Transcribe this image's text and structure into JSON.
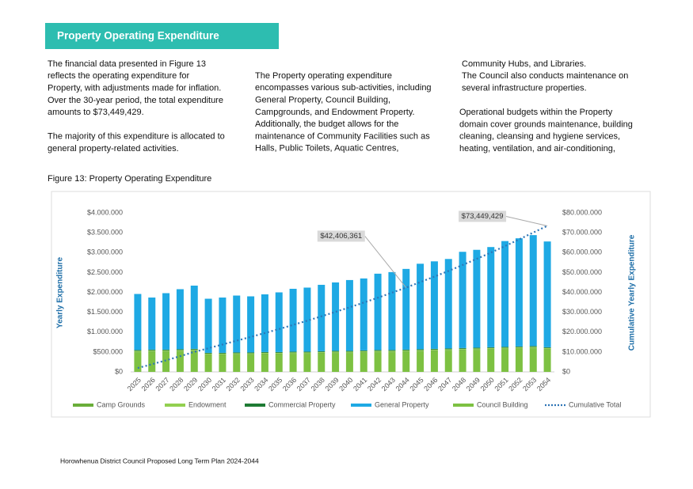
{
  "header": {
    "title": "Property Operating Expenditure"
  },
  "body": {
    "columns": [
      {
        "paragraphs": [
          {
            "lines": [
              "The financial data presented in Figure 13",
              "reflects the operating expenditure for",
              "Property, with adjustments made for inflation.",
              "Over the 30-year period, the total expenditure",
              "amounts to $73,449,429."
            ]
          },
          {
            "lines": [
              "The majority of this expenditure is allocated to",
              "general property-related activities."
            ]
          }
        ]
      },
      {
        "paragraphs": [
          {
            "lines": [
              "The Property operating expenditure",
              "encompasses various sub-activities, including",
              "General Property, Council Building,",
              "Campgrounds, and Endowment Property.",
              "Additionally, the budget allows for the",
              "maintenance of Community Facilities such as",
              "Halls, Public Toilets, Aquatic Centres,"
            ]
          }
        ]
      },
      {
        "paragraphs": [
          {
            "lines": [
              "Community Hubs, and Libraries.",
              "The Council also conducts maintenance on",
              "several infrastructure properties."
            ]
          },
          {
            "lines": [
              "Operational budgets within the Property",
              "domain cover grounds maintenance, building",
              "cleaning, cleansing and hygiene services,",
              "heating, ventilation, and air-conditioning,"
            ]
          }
        ]
      }
    ]
  },
  "figure": {
    "caption": "Figure 13: Property Operating Expenditure"
  },
  "chart_data": {
    "type": "stacked-bar-line",
    "ylabel": "Yearly Expenditure",
    "y2label": "Cumulative Yearly Expenditure",
    "categories": [
      "2025",
      "2026",
      "2027",
      "2028",
      "2029",
      "2030",
      "2031",
      "2032",
      "2033",
      "2034",
      "2035",
      "2036",
      "2037",
      "2038",
      "2039",
      "2040",
      "2041",
      "2042",
      "2043",
      "2044",
      "2045",
      "2046",
      "2047",
      "2048",
      "2049",
      "2050",
      "2051",
      "2052",
      "2053",
      "2054"
    ],
    "ylim": [
      0,
      4000000
    ],
    "yticks": [
      {
        "value": 0,
        "label": "$0"
      },
      {
        "value": 500000,
        "label": "$500.000"
      },
      {
        "value": 1000000,
        "label": "$1.000.000"
      },
      {
        "value": 1500000,
        "label": "$1.500.000"
      },
      {
        "value": 2000000,
        "label": "$2.000.000"
      },
      {
        "value": 2500000,
        "label": "$2.500.000"
      },
      {
        "value": 3000000,
        "label": "$3.000.000"
      },
      {
        "value": 3500000,
        "label": "$3.500.000"
      },
      {
        "value": 4000000,
        "label": "$4.000.000"
      }
    ],
    "y2lim": [
      0,
      80000000
    ],
    "y2ticks": [
      {
        "value": 0,
        "label": "$0"
      },
      {
        "value": 10000000,
        "label": "$10.000.000"
      },
      {
        "value": 20000000,
        "label": "$20.000.000"
      },
      {
        "value": 30000000,
        "label": "$30.000.000"
      },
      {
        "value": 40000000,
        "label": "$40.000.000"
      },
      {
        "value": 50000000,
        "label": "$50.000.000"
      },
      {
        "value": 60000000,
        "label": "$60.000.000"
      },
      {
        "value": 70000000,
        "label": "$70.000.000"
      },
      {
        "value": 80000000,
        "label": "$80.000.000"
      }
    ],
    "grid": false,
    "series": [
      {
        "name": "Camp Grounds",
        "color": "#6aae3a",
        "values": [
          20000,
          20000,
          20000,
          20000,
          20000,
          20000,
          20000,
          20000,
          20000,
          20000,
          20000,
          20000,
          20000,
          20000,
          20000,
          20000,
          20000,
          20000,
          20000,
          20000,
          20000,
          20000,
          20000,
          20000,
          20000,
          20000,
          20000,
          20000,
          20000,
          20000
        ]
      },
      {
        "name": "Endowment",
        "color": "#92d050",
        "values": [
          20000,
          20000,
          20000,
          20000,
          20000,
          20000,
          20000,
          20000,
          20000,
          20000,
          20000,
          20000,
          20000,
          20000,
          20000,
          20000,
          20000,
          20000,
          20000,
          20000,
          20000,
          20000,
          20000,
          20000,
          20000,
          20000,
          20000,
          20000,
          20000,
          20000
        ]
      },
      {
        "name": "Commercial Property",
        "color": "#1e7b34",
        "values": [
          20000,
          20000,
          20000,
          20000,
          20000,
          20000,
          20000,
          20000,
          20000,
          20000,
          20000,
          20000,
          20000,
          20000,
          20000,
          20000,
          20000,
          20000,
          20000,
          20000,
          20000,
          20000,
          20000,
          20000,
          20000,
          20000,
          20000,
          20000,
          20000,
          20000
        ]
      },
      {
        "name": "General Property",
        "color": "#1ea9e4",
        "values": [
          1410000,
          1310000,
          1420000,
          1510000,
          1590000,
          1360000,
          1390000,
          1430000,
          1410000,
          1450000,
          1500000,
          1580000,
          1610000,
          1670000,
          1720000,
          1780000,
          1810000,
          1920000,
          1960000,
          2030000,
          2150000,
          2200000,
          2250000,
          2420000,
          2460000,
          2520000,
          2660000,
          2720000,
          2790000,
          2660000
        ]
      },
      {
        "name": "Council Building",
        "color": "#7dc142",
        "values": [
          490000,
          500000,
          500000,
          510000,
          520000,
          420000,
          420000,
          430000,
          430000,
          440000,
          440000,
          450000,
          450000,
          460000,
          470000,
          470000,
          480000,
          490000,
          490000,
          500000,
          510000,
          520000,
          530000,
          540000,
          550000,
          560000,
          570000,
          580000,
          590000,
          560000
        ]
      },
      {
        "name": "Cumulative Total",
        "color": "#2e75b6",
        "axis": "y2",
        "values": [
          1960000,
          3830000,
          5810000,
          7890000,
          10060000,
          11900000,
          13770000,
          15690000,
          17590000,
          19540000,
          21540000,
          23630000,
          25750000,
          27940000,
          30190000,
          32500000,
          34850000,
          37320000,
          39830000,
          42406361,
          45140000,
          47920000,
          50760000,
          53780000,
          56850000,
          59990000,
          63280000,
          66640000,
          70080000,
          73449429
        ],
        "value_labels": [
          null,
          null,
          null,
          null,
          null,
          null,
          null,
          null,
          null,
          null,
          null,
          null,
          null,
          null,
          null,
          null,
          null,
          null,
          null,
          "$42,406,361",
          null,
          null,
          null,
          null,
          null,
          null,
          null,
          null,
          null,
          "$73,449,429"
        ]
      }
    ]
  },
  "footer": {
    "text": "Horowhenua District Council Proposed Long Term Plan 2024-2044"
  }
}
